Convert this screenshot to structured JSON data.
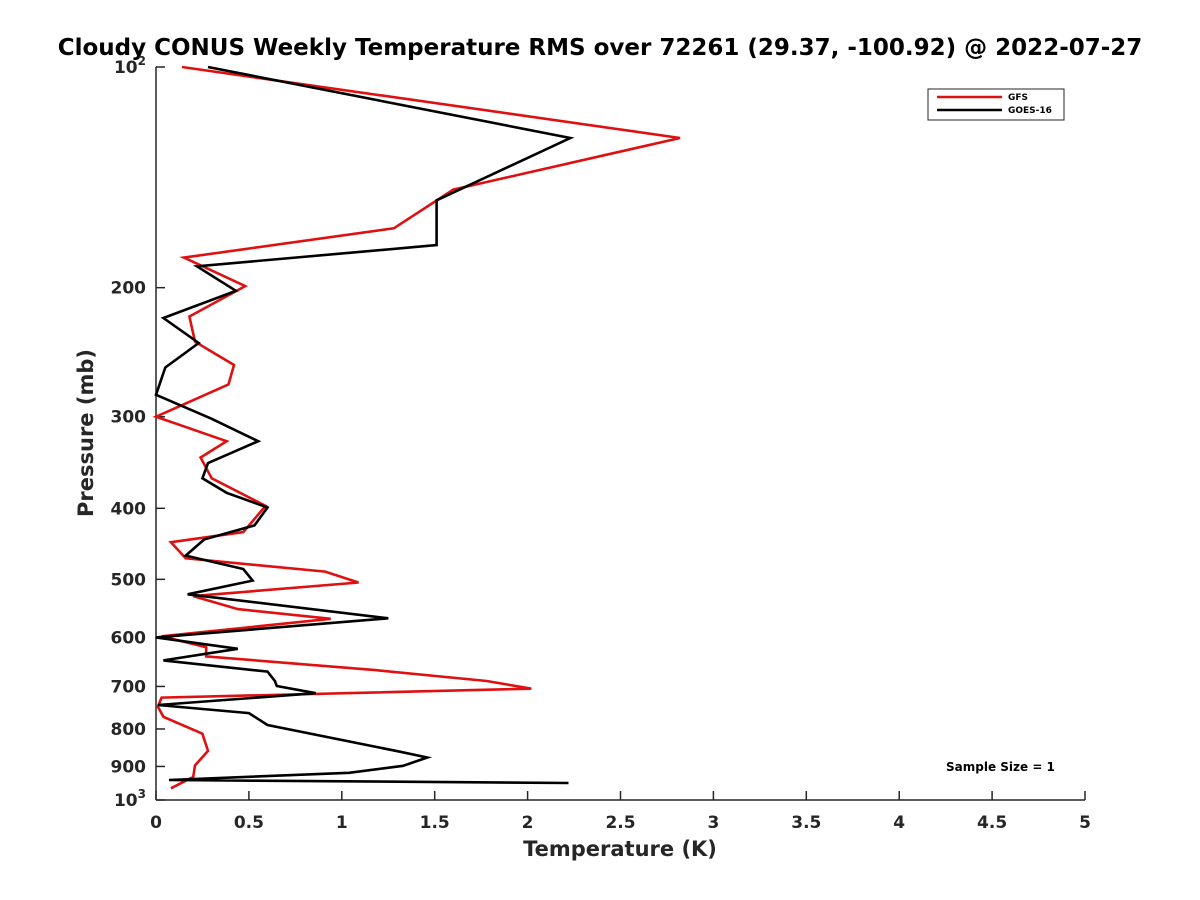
{
  "chart_data": {
    "type": "line",
    "title": "Cloudy CONUS Weekly Temperature RMS over 72261 (29.37, -100.92) @ 2022-07-27",
    "xlabel": "Temperature (K)",
    "ylabel": "Pressure (mb)",
    "xlim": [
      0,
      5
    ],
    "ylim": [
      100,
      1000
    ],
    "yscale": "log",
    "y_reversed": true,
    "grid": false,
    "legend_position": "top-right",
    "x_ticks": [
      "0",
      "0.5",
      "1",
      "1.5",
      "2",
      "2.5",
      "3",
      "3.5",
      "4",
      "4.5",
      "5"
    ],
    "x_tick_values": [
      0,
      0.5,
      1,
      1.5,
      2,
      2.5,
      3,
      3.5,
      4,
      4.5,
      5
    ],
    "y_ticks": [
      {
        "value": 100,
        "base": "10",
        "exp": "2"
      },
      {
        "value": 200,
        "label": "200"
      },
      {
        "value": 300,
        "label": "300"
      },
      {
        "value": 400,
        "label": "400"
      },
      {
        "value": 500,
        "label": "500"
      },
      {
        "value": 600,
        "label": "600"
      },
      {
        "value": 700,
        "label": "700"
      },
      {
        "value": 800,
        "label": "800"
      },
      {
        "value": 900,
        "label": "900"
      },
      {
        "value": 1000,
        "base": "10",
        "exp": "3"
      }
    ],
    "annotation": "Sample Size = 1",
    "series": [
      {
        "name": "GFS",
        "color": "#e01010",
        "points": [
          [
            0.14,
            100
          ],
          [
            2.82,
            125
          ],
          [
            1.6,
            147
          ],
          [
            1.28,
            166
          ],
          [
            0.15,
            182
          ],
          [
            0.48,
            199
          ],
          [
            0.18,
            219
          ],
          [
            0.21,
            237
          ],
          [
            0.42,
            255
          ],
          [
            0.39,
            271
          ],
          [
            0.0,
            300
          ],
          [
            0.38,
            324
          ],
          [
            0.24,
            341
          ],
          [
            0.3,
            364
          ],
          [
            0.59,
            397
          ],
          [
            0.47,
            431
          ],
          [
            0.08,
            445
          ],
          [
            0.16,
            468
          ],
          [
            0.91,
            488
          ],
          [
            1.09,
            505
          ],
          [
            0.2,
            527
          ],
          [
            0.44,
            549
          ],
          [
            0.94,
            566
          ],
          [
            0.03,
            598
          ],
          [
            0.27,
            619
          ],
          [
            0.27,
            637
          ],
          [
            1.18,
            665
          ],
          [
            1.78,
            688
          ],
          [
            2.02,
            705
          ],
          [
            0.03,
            725
          ],
          [
            0.01,
            746
          ],
          [
            0.04,
            770
          ],
          [
            0.25,
            812
          ],
          [
            0.28,
            857
          ],
          [
            0.21,
            897
          ],
          [
            0.2,
            930
          ],
          [
            0.08,
            964
          ]
        ]
      },
      {
        "name": "GOES-16",
        "color": "#000000",
        "points": [
          [
            0.28,
            100
          ],
          [
            2.23,
            125
          ],
          [
            1.51,
            152
          ],
          [
            1.51,
            175
          ],
          [
            0.22,
            187
          ],
          [
            0.43,
            202
          ],
          [
            0.04,
            220
          ],
          [
            0.23,
            238
          ],
          [
            0.05,
            257
          ],
          [
            0.0,
            280
          ],
          [
            0.3,
            302
          ],
          [
            0.55,
            324
          ],
          [
            0.28,
            347
          ],
          [
            0.25,
            364
          ],
          [
            0.38,
            381
          ],
          [
            0.6,
            399
          ],
          [
            0.53,
            422
          ],
          [
            0.26,
            441
          ],
          [
            0.16,
            464
          ],
          [
            0.47,
            484
          ],
          [
            0.52,
            502
          ],
          [
            0.17,
            524
          ],
          [
            1.25,
            565
          ],
          [
            0.0,
            600
          ],
          [
            0.44,
            622
          ],
          [
            0.04,
            645
          ],
          [
            0.6,
            668
          ],
          [
            0.64,
            688
          ],
          [
            0.65,
            699
          ],
          [
            0.86,
            715
          ],
          [
            0.01,
            742
          ],
          [
            0.5,
            761
          ],
          [
            0.6,
            790
          ],
          [
            1.3,
            858
          ],
          [
            1.46,
            875
          ],
          [
            1.33,
            898
          ],
          [
            1.04,
            918
          ],
          [
            0.07,
            939
          ],
          [
            2.22,
            948
          ]
        ]
      }
    ]
  }
}
